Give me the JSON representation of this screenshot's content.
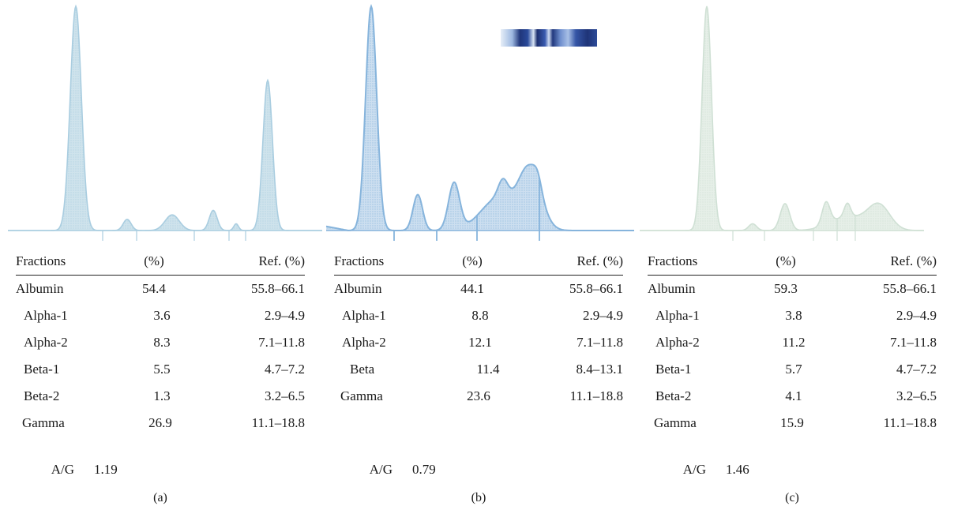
{
  "chart_data": [
    {
      "type": "line",
      "panel_label": "(a)",
      "trace_color": "#a9cde0",
      "fill_color": "#cfe3ec",
      "peaks": [
        {
          "fraction": "Albumin",
          "height": 1.0
        },
        {
          "fraction": "Alpha-1",
          "height": 0.05
        },
        {
          "fraction": "Alpha-2",
          "height": 0.07
        },
        {
          "fraction": "Beta-1",
          "height": 0.09
        },
        {
          "fraction": "Beta-2",
          "height": 0.03
        },
        {
          "fraction": "Gamma",
          "height": 0.67
        }
      ],
      "table": {
        "headers": [
          "Fractions",
          "(%)",
          "Ref. (%)"
        ],
        "rows": [
          [
            "Albumin",
            "54.4",
            "55.8–66.1"
          ],
          [
            "Alpha-1",
            "3.6",
            "2.9–4.9"
          ],
          [
            "Alpha-2",
            "8.3",
            "7.1–11.8"
          ],
          [
            "Beta-1",
            "5.5",
            "4.7–7.2"
          ],
          [
            "Beta-2",
            "1.3",
            "3.2–6.5"
          ],
          [
            "Gamma",
            "26.9",
            "11.1–18.8"
          ]
        ]
      },
      "ag_label": "A/G",
      "ag_value": "1.19"
    },
    {
      "type": "line",
      "panel_label": "(b)",
      "trace_color": "#86b4dc",
      "fill_color": "#cddff0",
      "has_gel_band": true,
      "peaks": [
        {
          "fraction": "Albumin",
          "height": 1.0
        },
        {
          "fraction": "Alpha-1",
          "height": 0.16
        },
        {
          "fraction": "Alpha-2",
          "height": 0.21
        },
        {
          "fraction": "Beta",
          "height": 0.08
        },
        {
          "fraction": "Gamma",
          "height": 0.26
        }
      ],
      "table": {
        "headers": [
          "Fractions",
          "(%)",
          "Ref. (%)"
        ],
        "rows": [
          [
            "Albumin",
            "44.1",
            "55.8–66.1"
          ],
          [
            "Alpha-1",
            "8.8",
            "2.9–4.9"
          ],
          [
            "Alpha-2",
            "12.1",
            "7.1–11.8"
          ],
          [
            "Beta",
            "11.4",
            "8.4–13.1"
          ],
          [
            "Gamma",
            "23.6",
            "11.1–18.8"
          ]
        ]
      },
      "ag_label": "A/G",
      "ag_value": "0.79"
    },
    {
      "type": "line",
      "panel_label": "(c)",
      "trace_color": "#cfe0d4",
      "fill_color": "#e6efe8",
      "peaks": [
        {
          "fraction": "Albumin",
          "height": 1.0
        },
        {
          "fraction": "Alpha-1",
          "height": 0.03
        },
        {
          "fraction": "Alpha-2",
          "height": 0.12
        },
        {
          "fraction": "Beta-1",
          "height": 0.1
        },
        {
          "fraction": "Beta-2",
          "height": 0.06
        },
        {
          "fraction": "Gamma",
          "height": 0.11
        }
      ],
      "table": {
        "headers": [
          "Fractions",
          "(%)",
          "Ref. (%)"
        ],
        "rows": [
          [
            "Albumin",
            "59.3",
            "55.8–66.1"
          ],
          [
            "Alpha-1",
            "3.8",
            "2.9–4.9"
          ],
          [
            "Alpha-2",
            "11.2",
            "7.1–11.8"
          ],
          [
            "Beta-1",
            "5.7",
            "4.7–7.2"
          ],
          [
            "Beta-2",
            "4.1",
            "3.2–6.5"
          ],
          [
            "Gamma",
            "15.9",
            "11.1–18.8"
          ]
        ]
      },
      "ag_label": "A/G",
      "ag_value": "1.46"
    }
  ]
}
